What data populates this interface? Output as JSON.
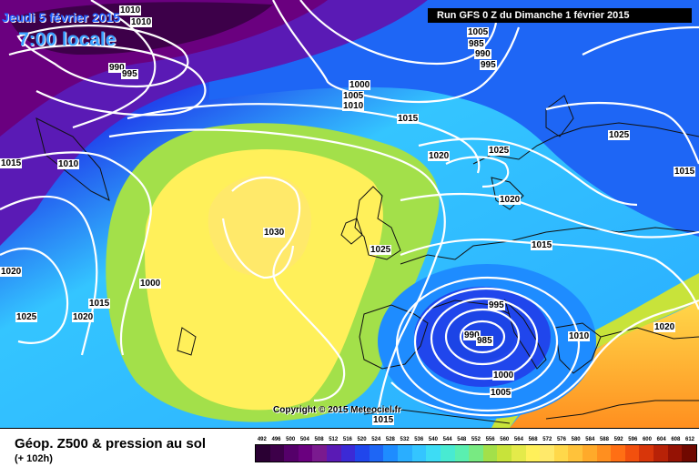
{
  "header": {
    "date_label": "Jeudi 5 février 2015",
    "time_label": "7:00 locale",
    "run_label": "Run GFS 0 Z du Dimanche 1 février 2015"
  },
  "map": {
    "copyright": "Copyright © 2015 Meteociel.fr",
    "isobar_labels": [
      "1010",
      "1010",
      "1005",
      "1000",
      "985",
      "990",
      "995",
      "990",
      "995",
      "1000",
      "1005",
      "1010",
      "1015",
      "1020",
      "1025",
      "1025",
      "1030",
      "1010",
      "1015",
      "1020",
      "1025",
      "1015",
      "1020",
      "1025",
      "1015",
      "1020",
      "1015",
      "995",
      "990",
      "985",
      "1000",
      "1005",
      "1010",
      "1015",
      "1020"
    ],
    "colors": {
      "trough": "#4a148c",
      "low_blue": "#1c44e6",
      "mid_cyan": "#34c5ff",
      "green": "#a3e04a",
      "ridge_yellow": "#ffe96a",
      "orange": "#ffb22b",
      "isobar": "#ffffff",
      "land_outline": "#111111"
    }
  },
  "legend": {
    "title": "Géop. Z500 & pression au sol",
    "subtitle": "(+ 102h)",
    "scale_values": [
      "492",
      "496",
      "500",
      "504",
      "508",
      "512",
      "516",
      "520",
      "524",
      "528",
      "532",
      "536",
      "540",
      "544",
      "548",
      "552",
      "556",
      "560",
      "564",
      "568",
      "572",
      "576",
      "580",
      "584",
      "588",
      "592",
      "596",
      "600",
      "604",
      "608",
      "612"
    ],
    "scale_colors": [
      "#2a0033",
      "#3d0049",
      "#55006a",
      "#6a007f",
      "#7a1a8f",
      "#5a1ab5",
      "#3b2ad6",
      "#2046ec",
      "#1e66f5",
      "#1e8cff",
      "#2aaeff",
      "#34c5ff",
      "#3ddcf5",
      "#48ead2",
      "#5aefb0",
      "#78ea82",
      "#a3e04a",
      "#c8e33a",
      "#e4ea4a",
      "#fff05a",
      "#ffe96a",
      "#ffd84a",
      "#ffc23a",
      "#ffaa2a",
      "#ff8f1f",
      "#ff6f14",
      "#f2500e",
      "#d8360a",
      "#b82207",
      "#951204",
      "#700800"
    ]
  }
}
